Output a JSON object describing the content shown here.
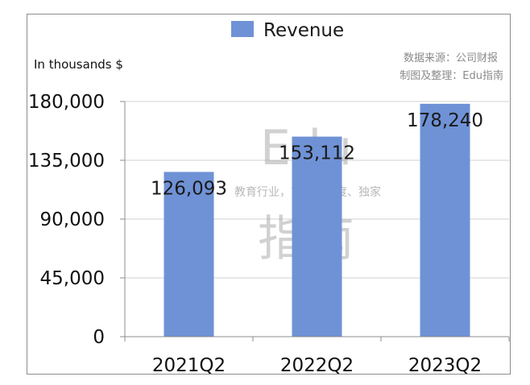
{
  "chart_data": {
    "type": "bar",
    "categories": [
      "2021Q2",
      "2022Q2",
      "2023Q2"
    ],
    "series": [
      {
        "name": "Revenue",
        "values": [
          126093,
          153112,
          178240
        ]
      }
    ],
    "data_labels": [
      "126,093",
      "153,112",
      "178,240"
    ],
    "ylim": [
      0,
      180000
    ],
    "yticks": [
      0,
      45000,
      90000,
      135000,
      180000
    ],
    "ytick_labels": [
      "0",
      "45,000",
      "90,000",
      "135,000",
      "180,000"
    ],
    "unit_label": "In thousands $",
    "legend_position": "top-center",
    "grid": true,
    "colors": {
      "bar": "#6f92d6",
      "grid": "#d0d0d0",
      "axis": "#8c8c8c"
    }
  },
  "credit": {
    "line1": "数据来源：公司财报",
    "line2": "制图及整理：Edu指南"
  },
  "watermark": {
    "big_top": "Edu",
    "small": "教育行业，前沿、深度、独家",
    "big_bottom": "指南"
  }
}
